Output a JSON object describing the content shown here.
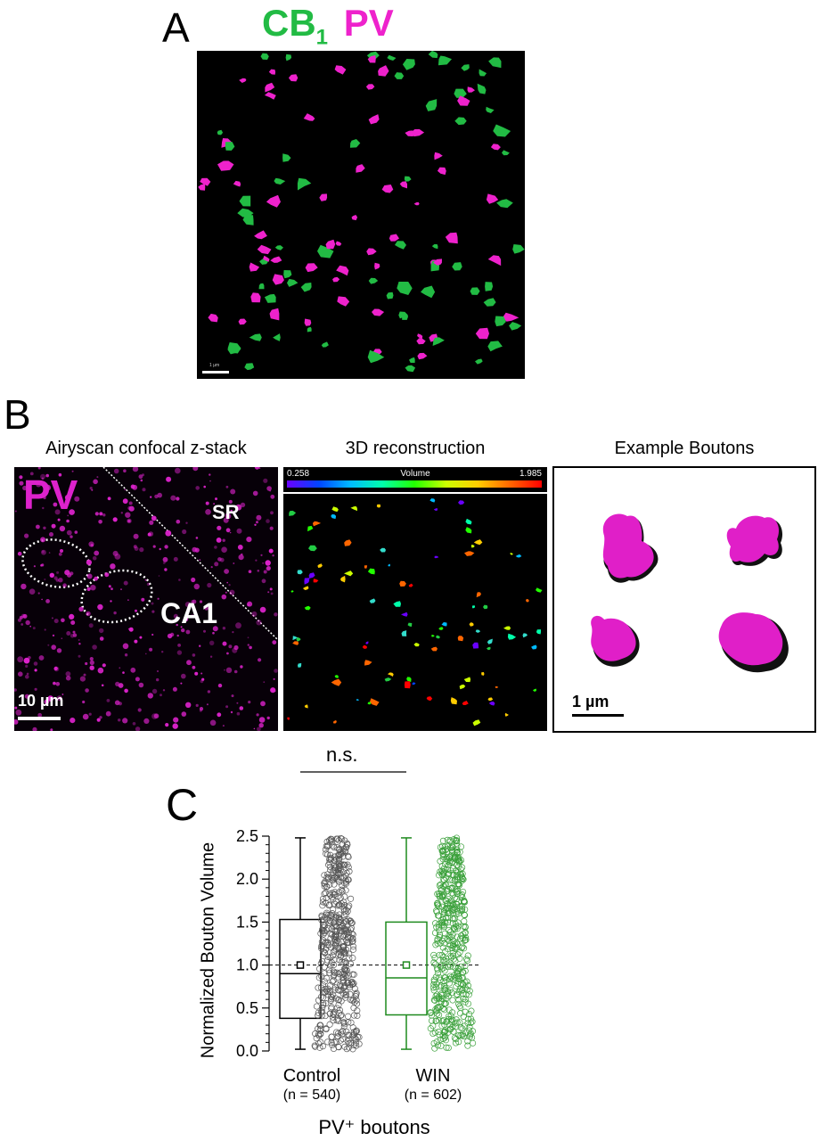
{
  "panel_a": {
    "letter": "A",
    "title_cb": "CB",
    "title_cb_sub": "1",
    "title_pv": "PV",
    "scale_label": "1 µm",
    "colors": {
      "cb1": "#22bb44",
      "pv": "#ee22cc"
    }
  },
  "panel_b": {
    "letter": "B",
    "captions": {
      "left": "Airyscan confocal z-stack",
      "middle": "3D reconstruction",
      "right": "Example Boutons"
    },
    "left_image": {
      "pv_label": "PV",
      "sr_label": "SR",
      "ca1_label": "CA1",
      "scale_label": "10 µm"
    },
    "middle_image": {
      "colorbar_title": "Volume",
      "colorbar_min": "0.258",
      "colorbar_max": "1.985"
    },
    "right_image": {
      "scale_label": "1 µm"
    }
  },
  "panel_c": {
    "letter": "C",
    "significance": "n.s.",
    "chart_data": {
      "type": "box",
      "ylabel": "Normalized Bouton Volume",
      "xlabel": "PV⁺ boutons",
      "ylim": [
        0,
        2.5
      ],
      "yticks": [
        "0.0",
        "0.5",
        "1.0",
        "1.5",
        "2.0",
        "2.5"
      ],
      "reference_line": 1.0,
      "groups": [
        {
          "label": "Control",
          "n_label": "(n = 540)",
          "color": "#000000",
          "min": 0.02,
          "q1": 0.38,
          "median": 0.9,
          "q3": 1.53,
          "max": 2.48,
          "mean": 1.0
        },
        {
          "label": "WIN",
          "n_label": "(n = 602)",
          "color": "#1e8a1e",
          "min": 0.02,
          "q1": 0.42,
          "median": 0.85,
          "q3": 1.5,
          "max": 2.48,
          "mean": 1.0
        }
      ]
    }
  }
}
